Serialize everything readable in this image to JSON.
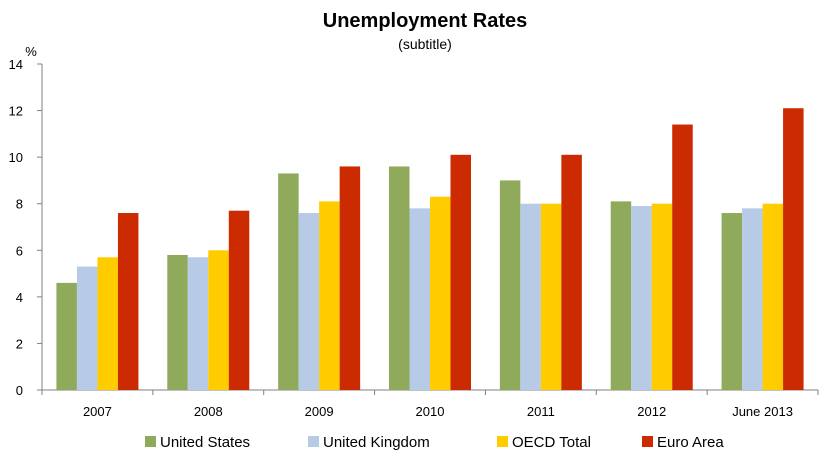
{
  "chart_data": {
    "type": "bar",
    "title": "Unemployment Rates",
    "subtitle": "(subtitle)",
    "ylabel": "%",
    "xlabel": "",
    "ylim": [
      0,
      14
    ],
    "yticks": [
      "0",
      "2",
      "4",
      "6",
      "8",
      "10",
      "12",
      "14"
    ],
    "categories": [
      "2007",
      "2008",
      "2009",
      "2010",
      "2011",
      "2012",
      "June 2013"
    ],
    "grid": false,
    "legend_position": "bottom",
    "series": [
      {
        "name": "United States",
        "color": "#8faa5b",
        "values": [
          4.6,
          5.8,
          9.3,
          9.6,
          9.0,
          8.1,
          7.6
        ]
      },
      {
        "name": "United Kingdom",
        "color": "#b7cbe6",
        "values": [
          5.3,
          5.7,
          7.6,
          7.8,
          8.0,
          7.9,
          7.8
        ]
      },
      {
        "name": "OECD Total",
        "color": "#ffcc00",
        "values": [
          5.7,
          6.0,
          8.1,
          8.3,
          8.0,
          8.0,
          8.0
        ]
      },
      {
        "name": "Euro Area",
        "color": "#cc2a00",
        "values": [
          7.6,
          7.7,
          9.6,
          10.1,
          10.1,
          11.4,
          12.1
        ]
      }
    ]
  }
}
